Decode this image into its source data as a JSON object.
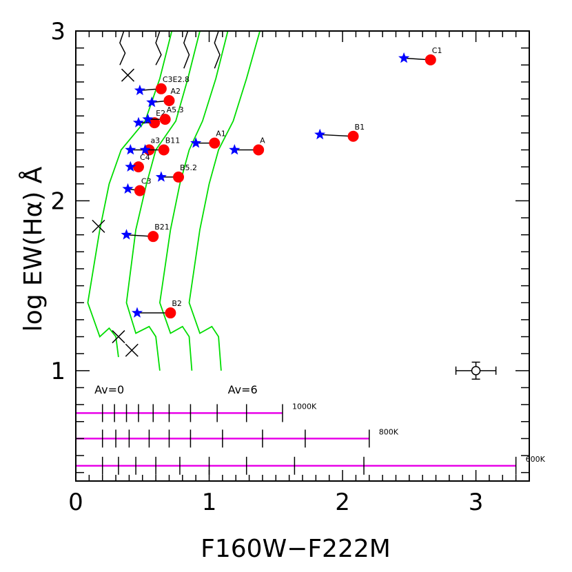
{
  "chart_data": {
    "type": "scatter",
    "title": "",
    "xlabel": "F160W−F222M",
    "ylabel": "log EW(Hα) Å",
    "xlim": [
      0,
      3.4
    ],
    "ylim": [
      0.35,
      3
    ],
    "xticks": [
      {
        "v": 0,
        "label": "0"
      },
      {
        "v": 1,
        "label": "1"
      },
      {
        "v": 2,
        "label": "2"
      },
      {
        "v": 3,
        "label": "3"
      }
    ],
    "yticks": [
      {
        "v": 1,
        "label": "1"
      },
      {
        "v": 2,
        "label": "2"
      },
      {
        "v": 3,
        "label": "3"
      }
    ],
    "stars": [
      {
        "label": "C1",
        "red": [
          2.66,
          2.83
        ],
        "blue": [
          2.46,
          2.84
        ]
      },
      {
        "label": "B1",
        "red": [
          2.08,
          2.38
        ],
        "blue": [
          1.83,
          2.39
        ]
      },
      {
        "label": "A",
        "red": [
          1.37,
          2.3
        ],
        "blue": [
          1.19,
          2.3
        ]
      },
      {
        "label": "A1",
        "red": [
          1.04,
          2.34
        ],
        "blue": [
          0.9,
          2.34
        ]
      },
      {
        "label": "C3E2.8",
        "red": [
          0.64,
          2.66
        ],
        "blue": [
          0.48,
          2.65
        ]
      },
      {
        "label": "A2",
        "red": [
          0.7,
          2.59
        ],
        "blue": [
          0.57,
          2.58
        ]
      },
      {
        "label": "E2",
        "red": [
          0.59,
          2.46
        ],
        "blue": [
          0.47,
          2.46
        ]
      },
      {
        "label": "A5.3",
        "red": [
          0.67,
          2.48
        ],
        "blue": [
          0.54,
          2.48
        ]
      },
      {
        "label": "a3",
        "red": [
          0.55,
          2.3
        ],
        "blue": [
          0.41,
          2.3
        ]
      },
      {
        "label": "B11",
        "red": [
          0.66,
          2.3
        ],
        "blue": [
          0.52,
          2.3
        ]
      },
      {
        "label": "C4",
        "red": [
          0.47,
          2.2
        ],
        "blue": [
          0.41,
          2.2
        ]
      },
      {
        "label": "B5.2",
        "red": [
          0.77,
          2.14
        ],
        "blue": [
          0.64,
          2.14
        ]
      },
      {
        "label": "C3",
        "red": [
          0.48,
          2.06
        ],
        "blue": [
          0.39,
          2.07
        ]
      },
      {
        "label": "B21",
        "red": [
          0.58,
          1.79
        ],
        "blue": [
          0.38,
          1.8
        ]
      },
      {
        "label": "B2",
        "red": [
          0.71,
          1.34
        ],
        "blue": [
          0.46,
          1.34
        ]
      }
    ],
    "av_curves": [
      [
        [
          0.72,
          3.0
        ],
        [
          0.63,
          2.72
        ],
        [
          0.52,
          2.47
        ],
        [
          0.34,
          2.3
        ],
        [
          0.25,
          2.1
        ],
        [
          0.18,
          1.83
        ],
        [
          0.09,
          1.4
        ],
        [
          0.18,
          1.2
        ],
        [
          0.25,
          1.25
        ],
        [
          0.3,
          1.2
        ],
        [
          0.32,
          1.08
        ]
      ],
      [
        [
          0.93,
          3.0
        ],
        [
          0.84,
          2.72
        ],
        [
          0.75,
          2.47
        ],
        [
          0.6,
          2.3
        ],
        [
          0.53,
          2.1
        ],
        [
          0.45,
          1.83
        ],
        [
          0.38,
          1.4
        ],
        [
          0.45,
          1.22
        ],
        [
          0.55,
          1.26
        ],
        [
          0.6,
          1.2
        ],
        [
          0.63,
          1.0
        ]
      ],
      [
        [
          1.14,
          3.0
        ],
        [
          1.05,
          2.72
        ],
        [
          0.95,
          2.47
        ],
        [
          0.85,
          2.3
        ],
        [
          0.78,
          2.1
        ],
        [
          0.71,
          1.83
        ],
        [
          0.63,
          1.4
        ],
        [
          0.71,
          1.22
        ],
        [
          0.8,
          1.26
        ],
        [
          0.85,
          1.2
        ],
        [
          0.87,
          1.0
        ]
      ],
      [
        [
          1.38,
          3.0
        ],
        [
          1.28,
          2.72
        ],
        [
          1.18,
          2.47
        ],
        [
          1.07,
          2.3
        ],
        [
          1.0,
          2.1
        ],
        [
          0.93,
          1.83
        ],
        [
          0.85,
          1.4
        ],
        [
          0.93,
          1.22
        ],
        [
          1.02,
          1.26
        ],
        [
          1.07,
          1.2
        ],
        [
          1.09,
          1.0
        ]
      ]
    ],
    "crosses": [
      [
        0.39,
        2.74
      ],
      [
        0.17,
        1.85
      ],
      [
        0.32,
        1.2
      ],
      [
        0.42,
        1.12
      ]
    ],
    "wiggles": [
      [
        [
          0.36,
          3.0
        ],
        [
          0.33,
          2.93
        ],
        [
          0.37,
          2.87
        ],
        [
          0.33,
          2.8
        ]
      ],
      [
        [
          0.63,
          3.0
        ],
        [
          0.6,
          2.93
        ],
        [
          0.64,
          2.86
        ],
        [
          0.6,
          2.8
        ]
      ],
      [
        [
          0.84,
          3.0
        ],
        [
          0.81,
          2.93
        ],
        [
          0.85,
          2.86
        ],
        [
          0.81,
          2.78
        ]
      ],
      [
        [
          1.07,
          3.0
        ],
        [
          1.04,
          2.93
        ],
        [
          1.08,
          2.86
        ],
        [
          1.04,
          2.78
        ]
      ]
    ],
    "av_labels": [
      {
        "text": "Av=0",
        "x": 0.14,
        "y": 0.95
      },
      {
        "text": "Av=6",
        "x": 1.14,
        "y": 0.95
      }
    ],
    "error_point": {
      "x": 3.0,
      "y": 1.0,
      "xerr": 0.15,
      "yerr": 0.05
    },
    "age_tracks": [
      {
        "label": "1000K",
        "y": 0.75,
        "xmin": 0.0,
        "xmax": 1.55,
        "ticks": [
          0.2,
          0.29,
          0.38,
          0.47,
          0.58,
          0.7,
          0.86,
          1.06,
          1.28,
          1.55
        ]
      },
      {
        "label": "800K",
        "y": 0.6,
        "xmin": 0.0,
        "xmax": 2.2,
        "ticks": [
          0.2,
          0.3,
          0.4,
          0.55,
          0.7,
          0.86,
          1.1,
          1.4,
          1.72,
          2.2
        ]
      },
      {
        "label": "600K",
        "y": 0.44,
        "xmin": 0.0,
        "xmax": 3.3,
        "ticks": [
          0.2,
          0.32,
          0.45,
          0.6,
          0.78,
          1.0,
          1.28,
          1.64,
          2.16,
          3.3
        ]
      }
    ],
    "colors": {
      "red_marker": "#ff0000",
      "blue_marker": "#0000ff",
      "green_curve": "#00dd00",
      "magenta_track": "#e800e8",
      "axis": "#000000"
    }
  }
}
